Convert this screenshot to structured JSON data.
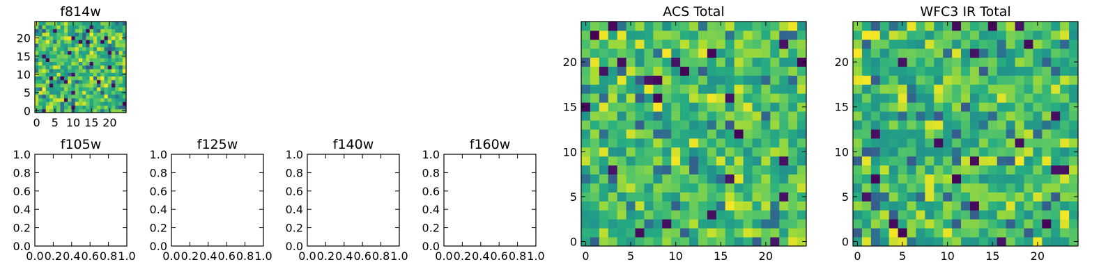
{
  "chart_data": [
    {
      "id": "f814w",
      "type": "heatmap",
      "title": "f814w",
      "grid_size": 25,
      "xlim": [
        -0.5,
        24.5
      ],
      "ylim": [
        -0.5,
        24.5
      ],
      "xticks": [
        0,
        5,
        10,
        15,
        20
      ],
      "yticks": [
        0,
        5,
        10,
        15,
        20
      ],
      "colormap": "viridis",
      "seed": 814,
      "grid": false
    },
    {
      "id": "f105w",
      "type": "empty",
      "title": "f105w",
      "xlim": [
        0,
        1
      ],
      "ylim": [
        0,
        1
      ],
      "xticks": [
        "0.0",
        "0.2",
        "0.4",
        "0.6",
        "0.8",
        "1.0"
      ],
      "yticks": [
        "0.0",
        "0.2",
        "0.4",
        "0.6",
        "0.8",
        "1.0"
      ]
    },
    {
      "id": "f125w",
      "type": "empty",
      "title": "f125w",
      "xlim": [
        0,
        1
      ],
      "ylim": [
        0,
        1
      ],
      "xticks": [
        "0.0",
        "0.2",
        "0.4",
        "0.6",
        "0.8",
        "1.0"
      ],
      "yticks": [
        "0.0",
        "0.2",
        "0.4",
        "0.6",
        "0.8",
        "1.0"
      ]
    },
    {
      "id": "f140w",
      "type": "empty",
      "title": "f140w",
      "xlim": [
        0,
        1
      ],
      "ylim": [
        0,
        1
      ],
      "xticks": [
        "0.0",
        "0.2",
        "0.4",
        "0.6",
        "0.8",
        "1.0"
      ],
      "yticks": [
        "0.0",
        "0.2",
        "0.4",
        "0.6",
        "0.8",
        "1.0"
      ]
    },
    {
      "id": "f160w",
      "type": "empty",
      "title": "f160w",
      "xlim": [
        0,
        1
      ],
      "ylim": [
        0,
        1
      ],
      "xticks": [
        "0.0",
        "0.2",
        "0.4",
        "0.6",
        "0.8",
        "1.0"
      ],
      "yticks": [
        "0.0",
        "0.2",
        "0.4",
        "0.6",
        "0.8",
        "1.0"
      ]
    },
    {
      "id": "acs-total",
      "type": "heatmap",
      "title": "ACS Total",
      "grid_size": 25,
      "xlim": [
        -0.5,
        24.5
      ],
      "ylim": [
        -0.5,
        24.5
      ],
      "xticks": [
        0,
        5,
        10,
        15,
        20
      ],
      "yticks": [
        0,
        5,
        10,
        15,
        20
      ],
      "colormap": "viridis",
      "seed": 1001,
      "grid": false
    },
    {
      "id": "wfc3-ir-total",
      "type": "heatmap",
      "title": "WFC3 IR Total",
      "grid_size": 25,
      "xlim": [
        -0.5,
        24.5
      ],
      "ylim": [
        -0.5,
        24.5
      ],
      "xticks": [
        0,
        5,
        10,
        15,
        20
      ],
      "yticks": [
        0,
        5,
        10,
        15,
        20
      ],
      "colormap": "viridis",
      "seed": 3003,
      "grid": false
    }
  ],
  "colors": {
    "viridis_dark": "#440154",
    "viridis_blue": "#31688e",
    "viridis_teal": "#21918c",
    "viridis_green": "#5ec962",
    "viridis_yellow": "#fde725",
    "axes": "#000000",
    "background": "#ffffff"
  }
}
